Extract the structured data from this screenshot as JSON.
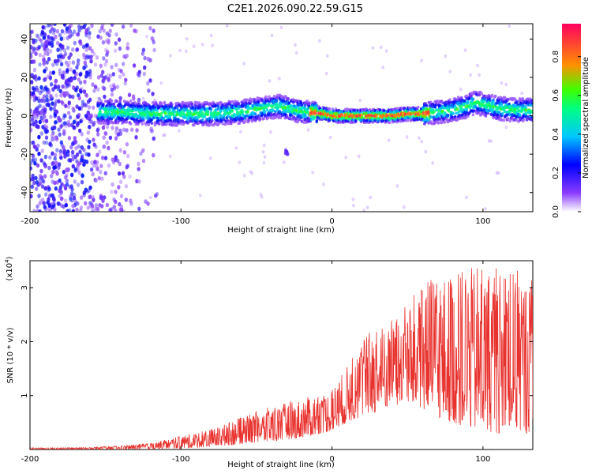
{
  "figure_title": "C2E1.2026.090.22.59.G15",
  "chart_data": [
    {
      "type": "heatmap",
      "title": "",
      "xlabel": "Height of straight line (km)",
      "ylabel": "Frequency (Hz)",
      "xlim": [
        -200,
        133
      ],
      "ylim": [
        -50,
        48
      ],
      "xticks": [
        -200,
        -100,
        0,
        100
      ],
      "yticks": [
        -40,
        -20,
        0,
        20,
        40
      ],
      "colorbar": {
        "label": "Normalized spectral amplitude",
        "range": [
          0.0,
          0.97
        ],
        "ticks": [
          "0.0",
          "0.2",
          "0.4",
          "0.6",
          "0.8"
        ],
        "colors": [
          "#ffffff",
          "#5a00ff",
          "#0000ff",
          "#00ffff",
          "#00ff00",
          "#ff7f00",
          "#ff0040"
        ]
      },
      "ridge": {
        "description": "dominant spectral line frequency vs height",
        "x": [
          -155,
          -140,
          -120,
          -100,
          -80,
          -60,
          -45,
          -35,
          -25,
          -15,
          -5,
          0,
          10,
          20,
          30,
          40,
          50,
          60,
          70,
          80,
          90,
          95,
          100,
          110,
          120,
          133
        ],
        "y": [
          2,
          2,
          1,
          1,
          1,
          2,
          4,
          5,
          3,
          2,
          1,
          0,
          0,
          0,
          0,
          0,
          1,
          1,
          2,
          3,
          5,
          7,
          6,
          4,
          3,
          3
        ]
      },
      "noise_region_x": [
        -200,
        -125
      ],
      "artifact": {
        "x": -30,
        "y": -19
      }
    },
    {
      "type": "line",
      "title": "",
      "xlabel": "Height of straight line (km)",
      "ylabel": "SNR (10 * v/v)",
      "y_scale_note": "(x10",
      "y_scale_exp": "4",
      "xlim": [
        -200,
        133
      ],
      "ylim": [
        0,
        3.5
      ],
      "xticks": [
        -200,
        -100,
        0,
        100
      ],
      "yticks": [
        1,
        2,
        3
      ],
      "color": "#e8322e",
      "envelope": {
        "x": [
          -200,
          -160,
          -140,
          -120,
          -100,
          -80,
          -60,
          -40,
          -20,
          -10,
          0,
          10,
          20,
          30,
          40,
          50,
          60,
          70,
          80,
          90,
          100,
          110,
          120,
          133
        ],
        "peak": [
          0.03,
          0.04,
          0.07,
          0.12,
          0.25,
          0.38,
          0.6,
          0.8,
          0.95,
          1.0,
          1.15,
          1.55,
          2.1,
          2.3,
          2.45,
          2.7,
          3.1,
          3.2,
          3.3,
          3.35,
          3.4,
          3.4,
          3.35,
          3.3
        ],
        "base": [
          0.0,
          0.0,
          0.0,
          0.01,
          0.02,
          0.05,
          0.1,
          0.15,
          0.22,
          0.28,
          0.35,
          0.5,
          0.6,
          0.7,
          0.8,
          0.85,
          0.75,
          0.6,
          0.5,
          0.4,
          0.35,
          0.3,
          0.3,
          0.3
        ]
      }
    }
  ]
}
